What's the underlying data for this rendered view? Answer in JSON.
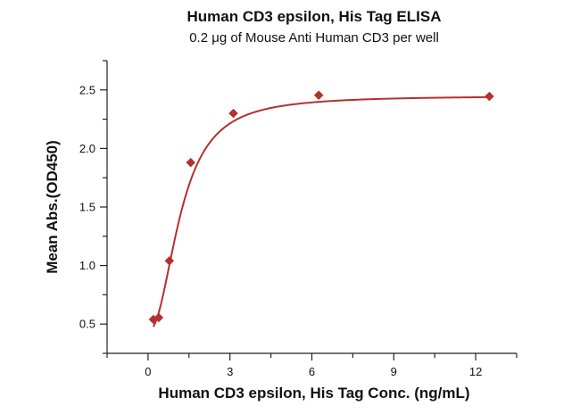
{
  "chart_data": {
    "type": "scatter",
    "title": "Human CD3 epsilon, His Tag ELISA",
    "subtitle": "0.2 μg of Mouse Anti Human CD3 per well",
    "xlabel": "Human CD3 epsilon, His Tag Conc. (ng/mL)",
    "ylabel": "Mean Abs.(OD450)",
    "xlim": [
      -1.5,
      13.5
    ],
    "ylim": [
      0.25,
      2.75
    ],
    "x_ticks": [
      0,
      3,
      6,
      9,
      12
    ],
    "y_ticks": [
      0.5,
      1.0,
      1.5,
      2.0,
      2.5
    ],
    "x_tick_labels": [
      "0",
      "3",
      "6",
      "9",
      "12"
    ],
    "y_tick_labels": [
      "0.5",
      "1.0",
      "1.5",
      "2.0",
      "2.5"
    ],
    "grid": false,
    "colors": {
      "series": "#b5302f",
      "axis": "#222222"
    },
    "marker": "diamond",
    "series": [
      {
        "x": [
          0.195,
          0.391,
          0.781,
          1.563,
          3.125,
          6.25,
          12.5
        ],
        "y": [
          0.54,
          0.555,
          1.04,
          1.88,
          2.3,
          2.455,
          2.445
        ]
      }
    ],
    "fit_curve": {
      "type": "4PL",
      "bottom": 0.44,
      "top": 2.45,
      "ec50": 1.2,
      "hill": 2.2
    }
  }
}
